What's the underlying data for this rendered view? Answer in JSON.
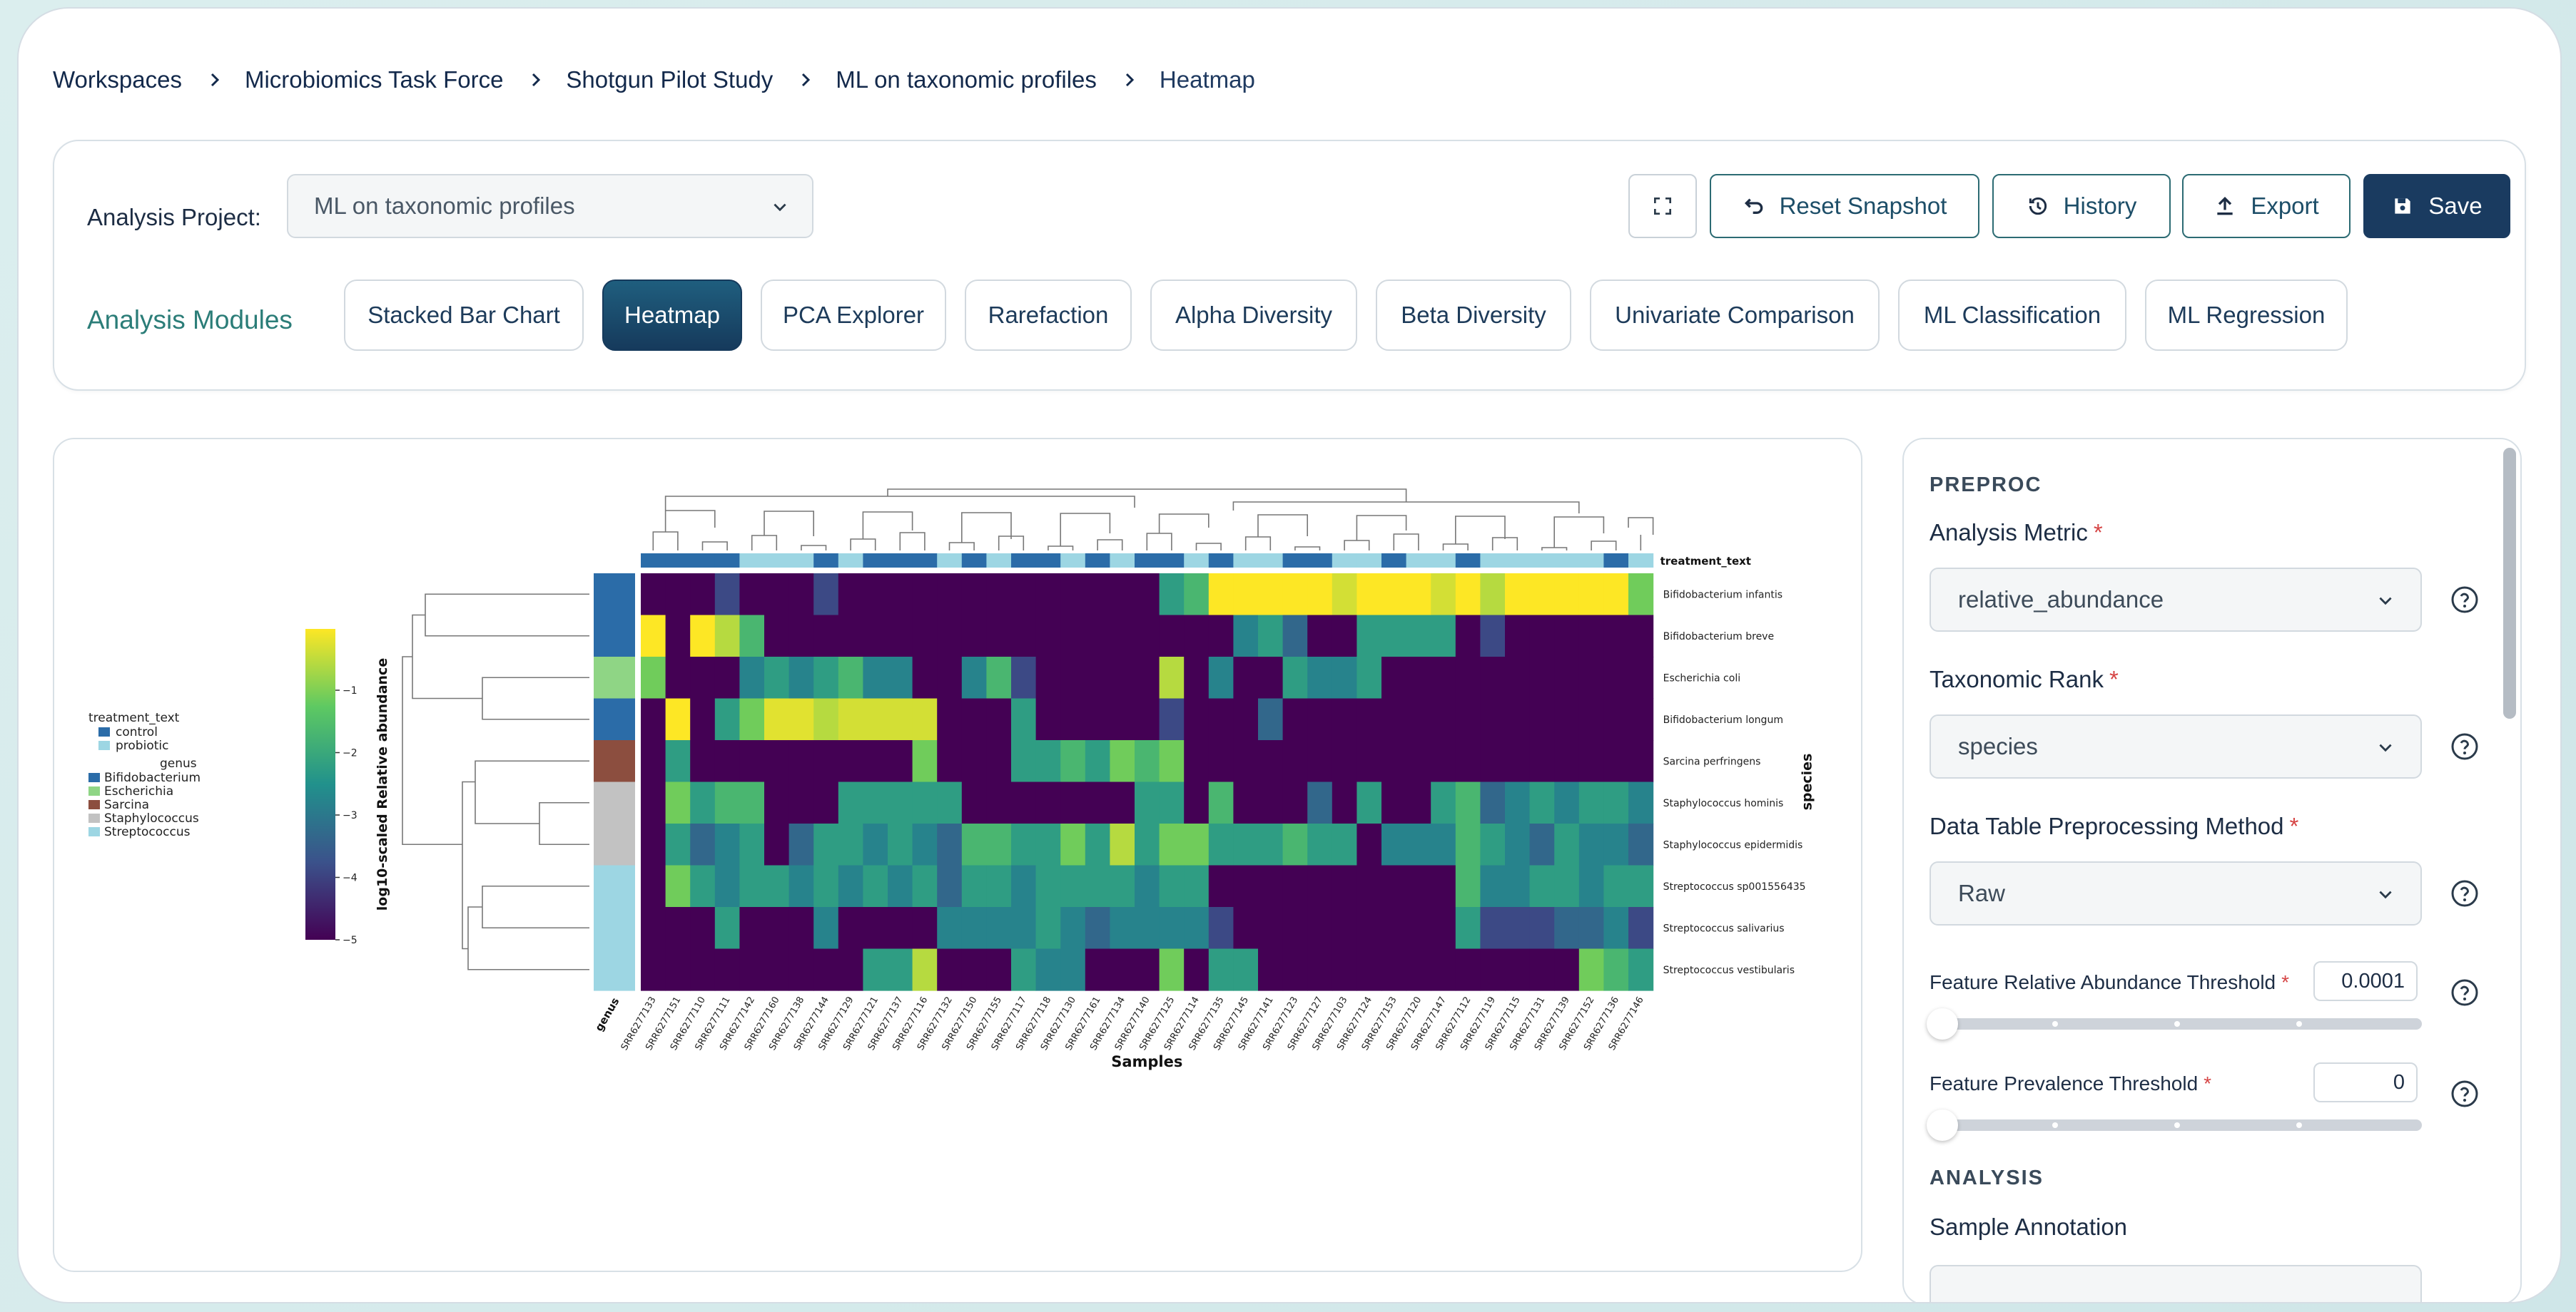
{
  "breadcrumb": [
    "Workspaces",
    "Microbiomics Task Force",
    "Shotgun Pilot Study",
    "ML on taxonomic profiles",
    "Heatmap"
  ],
  "project": {
    "label": "Analysis Project:",
    "value": "ML on taxonomic profiles"
  },
  "toolbar": {
    "reset": "Reset Snapshot",
    "history": "History",
    "export": "Export",
    "save": "Save"
  },
  "modules": {
    "label": "Analysis Modules",
    "items": [
      "Stacked Bar Chart",
      "Heatmap",
      "PCA Explorer",
      "Rarefaction",
      "Alpha Diversity",
      "Beta Diversity",
      "Univariate Comparison",
      "ML Classification",
      "ML Regression"
    ],
    "active": "Heatmap"
  },
  "panel": {
    "preproc_title": "PREPROC",
    "metric": {
      "label": "Analysis Metric",
      "value": "relative_abundance"
    },
    "rank": {
      "label": "Taxonomic Rank",
      "value": "species"
    },
    "method": {
      "label": "Data Table Preprocessing Method",
      "value": "Raw"
    },
    "abund_threshold": {
      "label": "Feature Relative Abundance Threshold",
      "value": "0.0001"
    },
    "prev_threshold": {
      "label": "Feature Prevalence Threshold",
      "value": "0"
    },
    "analysis_title": "ANALYSIS",
    "sample_annotation": {
      "label": "Sample Annotation"
    },
    "required_mark": "*"
  },
  "colors": {
    "accent": "#1a3b60",
    "teal": "#2b7d78",
    "control": "#2b6ca8",
    "probiotic": "#9dd6e3"
  },
  "chart_data": {
    "type": "heatmap",
    "xlabel": "Samples",
    "ylabel": "species",
    "colorbar_label": "log10-scaled Relative abundance",
    "colorbar_ticks": [
      "−1",
      "−2",
      "−3",
      "−4",
      "−5"
    ],
    "col_annotation_label": "treatment_text",
    "row_annotation_label": "genus",
    "legend": {
      "treatment_title": "treatment_text",
      "treatment": [
        {
          "name": "control",
          "color": "#2b6ca8"
        },
        {
          "name": "probiotic",
          "color": "#9dd6e3"
        }
      ],
      "genus_title": "genus",
      "genus": [
        {
          "name": "Bifidobacterium",
          "color": "#2b6ca8"
        },
        {
          "name": "Escherichia",
          "color": "#8fd585"
        },
        {
          "name": "Sarcina",
          "color": "#8c4e3f"
        },
        {
          "name": "Staphylococcus",
          "color": "#c2c2c2"
        },
        {
          "name": "Streptococcus",
          "color": "#9dd6e3"
        }
      ]
    },
    "species": [
      "Bifidobacterium infantis",
      "Bifidobacterium breve",
      "Escherichia coli",
      "Bifidobacterium longum",
      "Sarcina perfringens",
      "Staphylococcus hominis",
      "Staphylococcus epidermidis",
      "Streptococcus sp001556435",
      "Streptococcus salivarius",
      "Streptococcus vestibularis"
    ],
    "species_genus": [
      "Bifidobacterium",
      "Bifidobacterium",
      "Escherichia",
      "Bifidobacterium",
      "Sarcina",
      "Staphylococcus",
      "Staphylococcus",
      "Streptococcus",
      "Streptococcus",
      "Streptococcus"
    ],
    "samples": [
      "SRR6277133",
      "SRR6277151",
      "SRR6277110",
      "SRR6277111",
      "SRR6277142",
      "SRR6277160",
      "SRR6277138",
      "SRR6277144",
      "SRR6277129",
      "SRR6277121",
      "SRR6277137",
      "SRR6277116",
      "SRR6277132",
      "SRR6277150",
      "SRR6277155",
      "SRR6277117",
      "SRR6277118",
      "SRR6277130",
      "SRR6277161",
      "SRR6277134",
      "SRR6277140",
      "SRR6277125",
      "SRR6277114",
      "SRR6277135",
      "SRR6277145",
      "SRR6277141",
      "SRR6277123",
      "SRR6277127",
      "SRR6277103",
      "SRR6277124",
      "SRR6277153",
      "SRR6277120",
      "SRR6277147",
      "SRR6277112",
      "SRR6277119",
      "SRR6277115",
      "SRR6277131",
      "SRR6277139",
      "SRR6277152",
      "SRR6277136",
      "SRR6277146"
    ],
    "treatment": [
      "control",
      "control",
      "control",
      "control",
      "probiotic",
      "probiotic",
      "probiotic",
      "control",
      "probiotic",
      "control",
      "control",
      "control",
      "probiotic",
      "control",
      "probiotic",
      "control",
      "control",
      "probiotic",
      "control",
      "probiotic",
      "control",
      "control",
      "probiotic",
      "control",
      "probiotic",
      "probiotic",
      "control",
      "control",
      "probiotic",
      "probiotic",
      "control",
      "probiotic",
      "probiotic",
      "control",
      "probiotic",
      "probiotic",
      "probiotic",
      "probiotic",
      "probiotic",
      "control",
      "probiotic"
    ],
    "values": [
      [
        -5,
        -5,
        -5,
        -4,
        -5,
        -5,
        -5,
        -4,
        -5,
        -5,
        -5,
        -5,
        -5,
        -5,
        -5,
        -5,
        -5,
        -5,
        -5,
        -5,
        -5,
        -2.5,
        -2,
        -0.5,
        -0.5,
        -0.5,
        -0.5,
        -0.5,
        -0.8,
        -0.5,
        -0.5,
        -0.5,
        -0.8,
        -0.5,
        -1,
        -0.5,
        -0.5,
        -0.5,
        -0.5,
        -0.5,
        -1.5
      ],
      [
        -0.5,
        -5,
        -0.5,
        -1,
        -2,
        -5,
        -5,
        -5,
        -5,
        -5,
        -5,
        -5,
        -5,
        -5,
        -5,
        -5,
        -5,
        -5,
        -5,
        -5,
        -5,
        -5,
        -5,
        -5,
        -3,
        -2.5,
        -3.5,
        -5,
        -5,
        -2.5,
        -2.5,
        -2.5,
        -2.5,
        -5,
        -4,
        -5,
        -5,
        -5,
        -5,
        -5,
        -5
      ],
      [
        -1.5,
        -5,
        -5,
        -5,
        -3,
        -2.5,
        -3,
        -2.5,
        -2,
        -3,
        -3,
        -5,
        -5,
        -3,
        -2,
        -4,
        -5,
        -5,
        -5,
        -5,
        -5,
        -1,
        -5,
        -3,
        -5,
        -5,
        -2.5,
        -3,
        -3,
        -2.5,
        -5,
        -5,
        -5,
        -5,
        -5,
        -5,
        -5,
        -5,
        -5,
        -5,
        -5
      ],
      [
        -5,
        -0.5,
        -5,
        -2.5,
        -1.5,
        -0.7,
        -0.7,
        -1,
        -0.8,
        -0.8,
        -0.8,
        -0.8,
        -5,
        -5,
        -5,
        -2.5,
        -5,
        -5,
        -5,
        -5,
        -5,
        -4,
        -5,
        -5,
        -5,
        -3.5,
        -5,
        -5,
        -5,
        -5,
        -5,
        -5,
        -5,
        -5,
        -5,
        -5,
        -5,
        -5,
        -5,
        -5,
        -5
      ],
      [
        -5,
        -2.5,
        -5,
        -5,
        -5,
        -5,
        -5,
        -5,
        -5,
        -5,
        -5,
        -1.5,
        -5,
        -5,
        -5,
        -2.5,
        -2.5,
        -2,
        -2.5,
        -1.5,
        -2,
        -1.5,
        -5,
        -5,
        -5,
        -5,
        -5,
        -5,
        -5,
        -5,
        -5,
        -5,
        -5,
        -5,
        -5,
        -5,
        -5,
        -5,
        -5,
        -5,
        -5
      ],
      [
        -5,
        -1.5,
        -2.5,
        -2,
        -2,
        -5,
        -5,
        -5,
        -2.5,
        -2.5,
        -2.5,
        -2.5,
        -2.5,
        -5,
        -5,
        -5,
        -5,
        -5,
        -5,
        -5,
        -2.5,
        -2.5,
        -5,
        -2,
        -5,
        -5,
        -5,
        -3.5,
        -5,
        -2.5,
        -5,
        -5,
        -2.5,
        -2,
        -3.5,
        -3,
        -2.5,
        -3,
        -2.5,
        -2.5,
        -3
      ],
      [
        -5,
        -2.5,
        -3.5,
        -3,
        -2.5,
        -5,
        -3.5,
        -2.5,
        -2.5,
        -3,
        -2.5,
        -3,
        -3.5,
        -2,
        -2,
        -2.5,
        -2.5,
        -1.5,
        -2.5,
        -1,
        -2.5,
        -1.5,
        -1.5,
        -2.5,
        -2.5,
        -2.5,
        -2,
        -2.5,
        -2.5,
        -5,
        -3,
        -3,
        -3,
        -2,
        -2.5,
        -3,
        -3.5,
        -2.5,
        -3,
        -3,
        -3.5
      ],
      [
        -5,
        -1.5,
        -2.5,
        -3,
        -2.5,
        -2.5,
        -3,
        -2.5,
        -3,
        -2.5,
        -3,
        -2.5,
        -3.5,
        -2.5,
        -2.5,
        -3,
        -2.5,
        -2.5,
        -2.5,
        -2.5,
        -3,
        -2.5,
        -2.5,
        -5,
        -5,
        -5,
        -5,
        -5,
        -5,
        -5,
        -5,
        -5,
        -5,
        -2,
        -3,
        -3,
        -2.5,
        -2.5,
        -3,
        -2.5,
        -2.5
      ],
      [
        -5,
        -5,
        -5,
        -2.5,
        -5,
        -5,
        -5,
        -3,
        -5,
        -5,
        -5,
        -5,
        -3,
        -3,
        -3,
        -3,
        -2.5,
        -3,
        -3.5,
        -3,
        -3,
        -3,
        -3,
        -4,
        -5,
        -5,
        -5,
        -5,
        -5,
        -5,
        -5,
        -5,
        -5,
        -2.5,
        -4,
        -4,
        -4,
        -3.5,
        -3.5,
        -3,
        -4
      ],
      [
        -5,
        -5,
        -5,
        -5,
        -5,
        -5,
        -5,
        -5,
        -5,
        -2.5,
        -2.5,
        -1,
        -5,
        -5,
        -5,
        -2.5,
        -3,
        -3,
        -5,
        -5,
        -5,
        -1.5,
        -5,
        -2.5,
        -2.5,
        -5,
        -5,
        -5,
        -5,
        -5,
        -5,
        -5,
        -5,
        -5,
        -5,
        -5,
        -5,
        -5,
        -1.5,
        -2,
        -2.5
      ]
    ],
    "value_range": [
      -5,
      -0.5
    ]
  }
}
